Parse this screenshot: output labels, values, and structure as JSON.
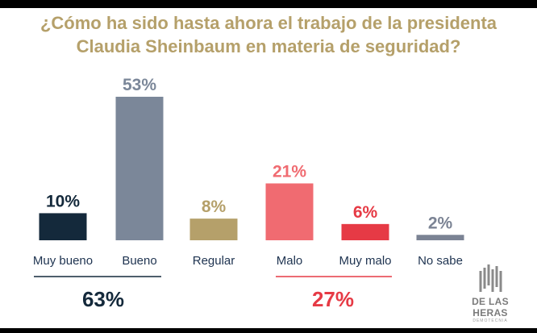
{
  "chart_data": {
    "type": "bar",
    "title_lines": [
      "¿Cómo ha sido hasta ahora el trabajo de la presidenta",
      "Claudia Sheinbaum en materia de seguridad?"
    ],
    "categories": [
      "Muy bueno",
      "Bueno",
      "Regular",
      "Malo",
      "Muy malo",
      "No sabe"
    ],
    "values": [
      10,
      53,
      8,
      21,
      6,
      2
    ],
    "value_labels": [
      "10%",
      "53%",
      "8%",
      "21%",
      "6%",
      "2%"
    ],
    "unit": "%",
    "ylim": [
      0,
      53
    ],
    "colors": [
      "#14293b",
      "#7b8799",
      "#b5a06a",
      "#f06b71",
      "#e63a45",
      "#7b8394"
    ],
    "label_colors": [
      "#14293b",
      "#7b8799",
      "#b5a06a",
      "#f06b71",
      "#e63a45",
      "#7b8394"
    ],
    "category_label_color": "#1e3350",
    "groups": [
      {
        "label": "63%",
        "categories": [
          "Muy bueno",
          "Bueno"
        ],
        "color": "#14293b"
      },
      {
        "label": "27%",
        "categories": [
          "Malo",
          "Muy malo"
        ],
        "color": "#e63a45"
      }
    ],
    "grid": false
  },
  "brand": {
    "name": "DE LAS HERAS",
    "subtitle": "DEMOTECNIA",
    "color": "#7b7b7b"
  }
}
